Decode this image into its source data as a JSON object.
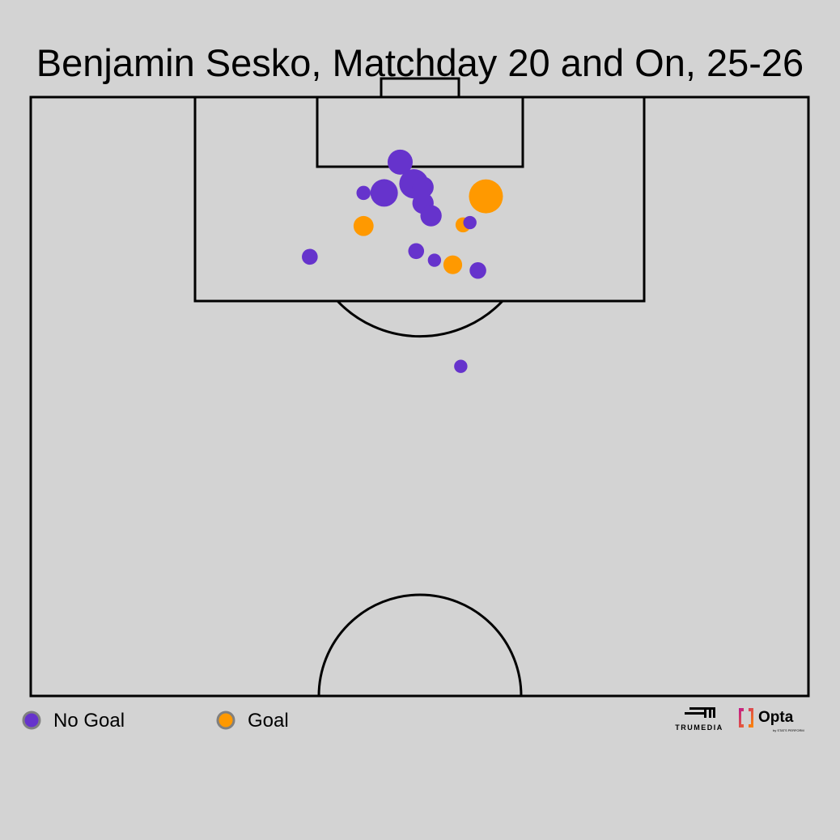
{
  "chart_data": {
    "type": "scatter",
    "title": "Benjamin Sesko, Matchday 20 and On, 25-26",
    "pitch": {
      "view": "attacking half, vertical",
      "width_m": 68,
      "half_length_m": 52.5
    },
    "x_axis": "metres from left touchline",
    "y_axis": "metres from goal line",
    "size_encoding": "xG (estimated)",
    "legend": {
      "placement": "bottom-left",
      "entries": [
        {
          "label": "No Goal",
          "color": "#6633cc"
        },
        {
          "label": "Goal",
          "color": "#ff9900"
        }
      ]
    },
    "shots": [
      {
        "x": 29.1,
        "y": 8.4,
        "xg": 0.08,
        "outcome": "No Goal"
      },
      {
        "x": 30.9,
        "y": 8.4,
        "xg": 0.3,
        "outcome": "No Goal"
      },
      {
        "x": 32.3,
        "y": 5.7,
        "xg": 0.25,
        "outcome": "No Goal"
      },
      {
        "x": 33.5,
        "y": 7.6,
        "xg": 0.34,
        "outcome": "No Goal"
      },
      {
        "x": 34.3,
        "y": 7.9,
        "xg": 0.18,
        "outcome": "No Goal"
      },
      {
        "x": 34.3,
        "y": 9.3,
        "xg": 0.18,
        "outcome": "No Goal"
      },
      {
        "x": 35.0,
        "y": 10.4,
        "xg": 0.18,
        "outcome": "No Goal"
      },
      {
        "x": 39.8,
        "y": 8.7,
        "xg": 0.46,
        "outcome": "Goal"
      },
      {
        "x": 37.8,
        "y": 11.2,
        "xg": 0.09,
        "outcome": "Goal"
      },
      {
        "x": 38.4,
        "y": 11.0,
        "xg": 0.07,
        "outcome": "No Goal"
      },
      {
        "x": 29.1,
        "y": 11.3,
        "xg": 0.16,
        "outcome": "Goal"
      },
      {
        "x": 24.4,
        "y": 14.0,
        "xg": 0.1,
        "outcome": "No Goal"
      },
      {
        "x": 33.7,
        "y": 13.5,
        "xg": 0.1,
        "outcome": "No Goal"
      },
      {
        "x": 35.3,
        "y": 14.3,
        "xg": 0.07,
        "outcome": "No Goal"
      },
      {
        "x": 36.9,
        "y": 14.7,
        "xg": 0.14,
        "outcome": "Goal"
      },
      {
        "x": 39.1,
        "y": 15.2,
        "xg": 0.11,
        "outcome": "No Goal"
      },
      {
        "x": 37.6,
        "y": 23.6,
        "xg": 0.07,
        "outcome": "No Goal"
      }
    ],
    "colors": {
      "background": "#d3d3d3",
      "lines": "#000000",
      "no_goal": "#6633cc",
      "goal": "#ff9900",
      "legend_stroke": "#808080"
    }
  },
  "logos": {
    "trumedia": "TRUMEDIA",
    "opta": "Opta",
    "opta_sub": "by STATS PERFORM"
  }
}
